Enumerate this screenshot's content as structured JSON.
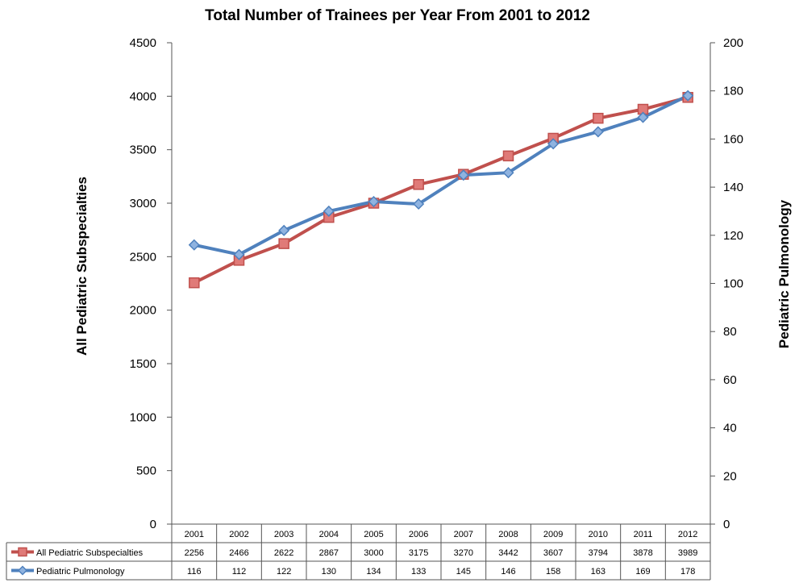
{
  "chart_data": {
    "type": "line",
    "title": "Total Number of Trainees per Year From 2001 to 2012",
    "ylabel_left": "All Pediatric Subspecialties",
    "ylabel_right": "Pediatric Pulmonology",
    "ylim_left": [
      0,
      4500
    ],
    "ylim_right": [
      0,
      200
    ],
    "yticks_left": [
      "0",
      "500",
      "1000",
      "1500",
      "2000",
      "2500",
      "3000",
      "3500",
      "4000",
      "4500"
    ],
    "yticks_right": [
      "0",
      "20",
      "40",
      "60",
      "80",
      "100",
      "120",
      "140",
      "160",
      "180",
      "200"
    ],
    "categories": [
      "2001",
      "2002",
      "2003",
      "2004",
      "2005",
      "2006",
      "2007",
      "2008",
      "2009",
      "2010",
      "2011",
      "2012"
    ],
    "series": [
      {
        "name": "All Pediatric Subspecialties",
        "axis": "left",
        "color": "#c0504d",
        "marker": "square",
        "values": [
          2256,
          2466,
          2622,
          2867,
          3000,
          3175,
          3270,
          3442,
          3607,
          3794,
          3878,
          3989
        ]
      },
      {
        "name": "Pediatric Pulmonology",
        "axis": "right",
        "color": "#4f81bd",
        "marker": "diamond",
        "values": [
          116,
          112,
          122,
          130,
          134,
          133,
          145,
          146,
          158,
          163,
          169,
          178
        ]
      }
    ],
    "grid": false,
    "legend": "data-table"
  }
}
